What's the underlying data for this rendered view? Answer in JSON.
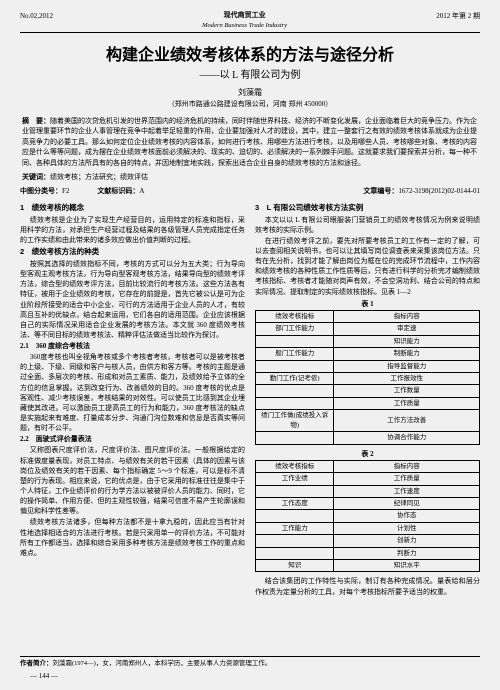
{
  "header": {
    "issue_left": "No.02,2012",
    "journal_cn": "现代商贸工业",
    "journal_en": "Modern Business Trade Industry",
    "issue_right": "2012 年第 2 期"
  },
  "title": "构建企业绩效考核体系的方法与途径分析",
  "subtitle": "——以 L 有限公司为例",
  "author": "刘藻霜",
  "affiliation": "（郑州市路通公路建设有限公司，河南 郑州 450000）",
  "abstract": {
    "label": "摘　要：",
    "text": "随着美国的次贷危机引发的世界范围内的经济危机的持续，同时伴随世界科技、经济的不断变化发展，企业面临着巨大的竞争压力。作为企业管理重要环节的企业人事管理在竞争中起着举足轻重的作用，企业要加强对人才的建设，其中，建立一整套行之有效的绩效考核体系就成为企业提高竞争力的必要工具。那么如何定位企业绩效考核的内容体系，如何进行考核、用哪些方法进行考核，以及用哪些人员、考核哪些对象、考核的内容应是什么等等问题，成为摆在企业绩效考核面前必须解决的、现实的、迫切的、必须解决的一系列棘手问题。这就要求我们要探索并分析，每一种不同、各种具体的方法所具有的各自的特点，并因地制宜地实践，探索出适合企业自身的绩效考核的方法和途径。"
  },
  "keywords": {
    "label": "关键词：",
    "text": "绩效考核；方法研究；绩效评估"
  },
  "clc": {
    "label": "中图分类号：",
    "value": "F2"
  },
  "doc_code": {
    "label": "文献标识码：",
    "value": "A"
  },
  "article_no": {
    "label": "文章编号：",
    "value": "1672-3198(2012)02-0144-01"
  },
  "left_col": {
    "s1_h": "1　绩效考核的概念",
    "s1_p": "绩效考核是企业为了实现生产经营目的，运用特定的标准和指标，采用科学的方法，对承担生产经营过程及结果的各级管理人员完成指定任务的工作实绩和由此带来的诸多效应做出价值判断的过程。",
    "s2_h": "2　绩效考核方法的种类",
    "s2_p1": "按照其选择的绩效指标不同，考核的方式可以分为五大类；行为导向型客观主观考核方法，行为导向型客观考核方法，结果导向型的绩效考评方法，综合型的绩效考评方法，目前比较流行的考核方法。这些方法各有特征，被用于企业绩效的考核，它存在的前提是，首先它被公认是可为企业阶段所接受的适合中小企业、可行的方法适用于企业人员的人才，有较高且互补的优缺点，结合起来运用，它们各自的适用范围。企业应该根据自己的实际情况采用适合企业发展的考核方法。本文就 360 度绩效考核法、等不同目标的绩效考核法、精粹评估法做适当比较作为探讨。",
    "s21_h": "2.1　360 度综合考核法",
    "s21_p": "360度考核也叫全视角考核或多个考核者考核，考核者可以是被考核者的上级、下级、同级和客户与核人员，由供方和客方等。考核的主题是通过全面、多层次的考核、形成和对员工素质、能力，及绩效给予立体的全方位的信息掌握。达到改变行为、改善绩效的目的。360 度考核的优点是客观性、减少考核误差，考核结果的对效性。可以使员工比感到其企业埋藏使其改进。可以激励员工提高员工的行为和能力，360 度考核法的缺点是实施起来有难度、打量成本分步、沟通门沟位数难和信息是否真实等问题，有时不公平。",
    "s22_h": "2.2　面驶式评价量表法",
    "s22_p1": "又称图表尺度评价法，尺度评价法、图尺度评价法。一般根据给定的标准做度量表现，对员工特点、与绩效有关的若干因素（具体的因素与该岗位及绩效有关的若干因素、每个指标确定 5～9 个标准，可以是标不清楚的行为表现。相应来说，它的优点是，由于它采用的标准往往是集中于个人特征，工作业绩评价的行为学方法以被被评价人员的能力、同时，它的操作简单、作用方便、但的主观性较强，结果可信度不易产生轮廓误和偏见和科学性差等。",
    "s22_p2": "绩效考核方法诸多，但每种方法都不是十拿九稳的，因此应当有针对性地选择相适合的方法进行考核。若是只采用单一的评价方法，不可能对所有工作都适当，选择和综合采用多种考核方法是绩效考核工作的重点和难点。"
  },
  "right_col": {
    "s3_h": "3　L 有限公司绩效考核方法实例",
    "s3_p1": "本文以以 L 有限公司眼服装门营销员工的绩效考核情况为例来说明绩效考核的实际示例。",
    "s3_p2": "在进行绩效考评之前，要先对所要考核员工的工作有一定的了解，可以去查阅相关说明书，也可以让其填写岗位调查表来采集该岗位方法。只有在先分析，找到才能了解由岗位为框在位的完成环节流程中，工作内容和绩效考核的各种性质工作性质等后，只有进行科学的分析完才编制绩效考核指标、考核者才能随对岗声有效，不会空洞功利、结合公司的特点和实际情况、提取制定的实际绩效核指标。见表 1—2",
    "t1_caption": "表 1",
    "t1": [
      [
        "绩效考核指标",
        "指标内容"
      ],
      [
        "部门工作能力",
        "审定速"
      ],
      [
        "　",
        "知识能力"
      ],
      [
        "般门工作能力",
        "制断能力"
      ],
      [
        "　",
        "指导监督能力"
      ],
      [
        "勤门工作(记考侬)",
        "工作报效性"
      ],
      [
        "　",
        "工作数量"
      ],
      [
        "　",
        "工作质量"
      ],
      [
        "绩门工作做(成绩投入诉物)",
        "工作方法改善"
      ],
      [
        "　",
        "协调合作能力"
      ]
    ],
    "t2_caption": "表 2",
    "t2": [
      [
        "绩效考核指标",
        "指标内容"
      ],
      [
        "工作业绩",
        "工作质量"
      ],
      [
        "　",
        "工作速度"
      ],
      [
        "工作态度",
        "纪律同见"
      ],
      [
        "　",
        "协作态"
      ],
      [
        "工作能力",
        "计划性"
      ],
      [
        "　",
        "创新力"
      ],
      [
        "　",
        "判断力"
      ],
      [
        "知识",
        "知识水平"
      ]
    ],
    "s3_p3": "结合该集团的工作特性与实际，制订有各种完成情况。量表给和层分作权责为定量分析的工具，对每个考核指标所要予适当的权重。"
  },
  "footer": {
    "author_bio_label": "作者简介：",
    "author_bio": "刘藻霜(1974—)，女，河南郑州人，本科学历，主要从事人力资源管理工作。",
    "page": "— 144 —"
  }
}
